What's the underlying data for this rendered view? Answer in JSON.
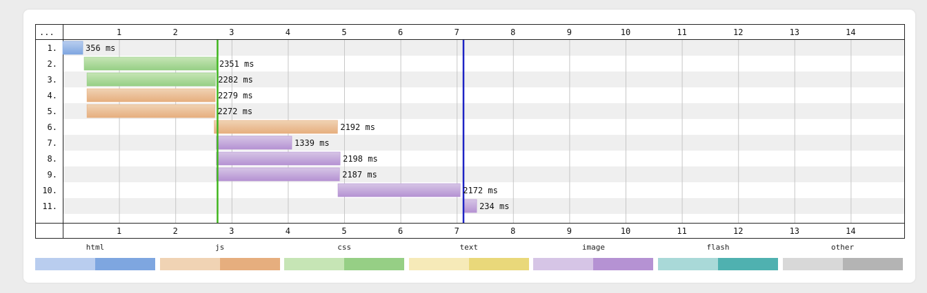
{
  "chart_data": {
    "type": "waterfall",
    "header_label": "...",
    "time_axis": {
      "ticks": [
        "1",
        "2",
        "3",
        "4",
        "5",
        "6",
        "7",
        "8",
        "9",
        "10",
        "11",
        "12",
        "13",
        "14"
      ],
      "unit": "s",
      "range": [
        0,
        14.7
      ]
    },
    "markers": [
      {
        "time": 2.75,
        "color": "#3fb61d"
      },
      {
        "time": 7.12,
        "color": "#1d23c4"
      }
    ],
    "requests": [
      {
        "row": "1.",
        "type": "html",
        "start": 0.0,
        "duration_ms": 356,
        "label": "356 ms"
      },
      {
        "row": "2.",
        "type": "css",
        "start": 0.38,
        "duration_ms": 2351,
        "label": "2351 ms"
      },
      {
        "row": "3.",
        "type": "css",
        "start": 0.43,
        "duration_ms": 2282,
        "label": "2282 ms"
      },
      {
        "row": "4.",
        "type": "js",
        "start": 0.43,
        "duration_ms": 2279,
        "label": "2279 ms"
      },
      {
        "row": "5.",
        "type": "js",
        "start": 0.43,
        "duration_ms": 2272,
        "label": "2272 ms"
      },
      {
        "row": "6.",
        "type": "js",
        "start": 2.69,
        "duration_ms": 2192,
        "label": "2192 ms"
      },
      {
        "row": "7.",
        "type": "image",
        "start": 2.73,
        "duration_ms": 1339,
        "label": "1339 ms"
      },
      {
        "row": "8.",
        "type": "image",
        "start": 2.73,
        "duration_ms": 2198,
        "label": "2198 ms"
      },
      {
        "row": "9.",
        "type": "image",
        "start": 2.73,
        "duration_ms": 2187,
        "label": "2187 ms"
      },
      {
        "row": "10.",
        "type": "image",
        "start": 4.89,
        "duration_ms": 2172,
        "label": "2172 ms"
      },
      {
        "row": "11.",
        "type": "image",
        "start": 7.12,
        "duration_ms": 234,
        "label": "234 ms"
      }
    ],
    "legend": [
      {
        "label": "html",
        "light": "#b9cdef",
        "dark": "#7ea6e0"
      },
      {
        "label": "js",
        "light": "#f0d3b4",
        "dark": "#e6ae7e"
      },
      {
        "label": "css",
        "light": "#c6e5b5",
        "dark": "#96cf85"
      },
      {
        "label": "text",
        "light": "#f6eab8",
        "dark": "#e9d87a"
      },
      {
        "label": "image",
        "light": "#d6c5e6",
        "dark": "#b592d3"
      },
      {
        "label": "flash",
        "light": "#a9d9d8",
        "dark": "#4fb1b0"
      },
      {
        "label": "other",
        "light": "#d8d8d8",
        "dark": "#b4b4b4"
      }
    ]
  }
}
